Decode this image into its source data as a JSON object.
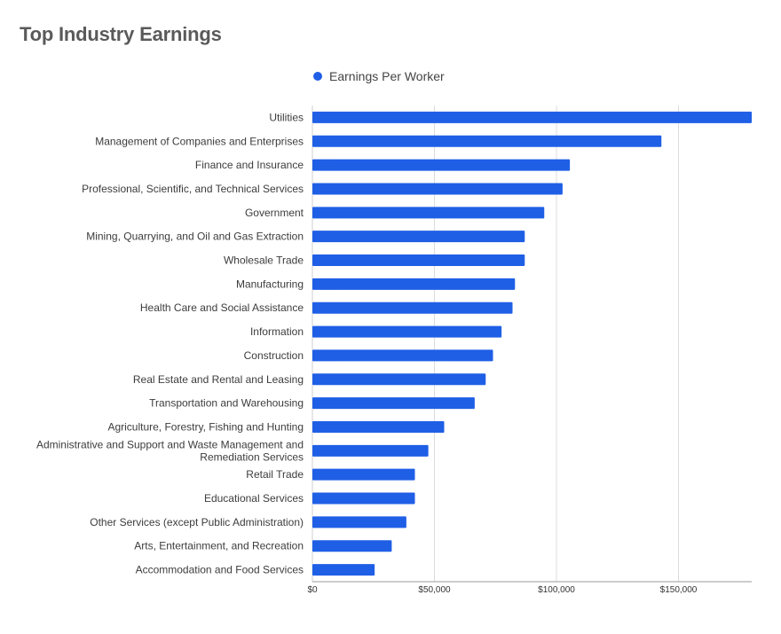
{
  "title": "Top Industry Earnings",
  "legend": {
    "label": "Earnings Per Worker",
    "color": "#1f5fe6"
  },
  "chart_data": {
    "type": "bar",
    "orientation": "horizontal",
    "title": "Top Industry Earnings",
    "xlabel": "",
    "ylabel": "",
    "xlim": [
      0,
      180000
    ],
    "grid": "vertical",
    "legend_position": "top",
    "ticks": [
      {
        "value": 0,
        "label": "$0"
      },
      {
        "value": 50000,
        "label": "$50,000"
      },
      {
        "value": 100000,
        "label": "$100,000"
      },
      {
        "value": 150000,
        "label": "$150,000"
      }
    ],
    "series": [
      {
        "name": "Earnings Per Worker",
        "color": "#1f5fe6",
        "categories": [
          [
            "Utilities"
          ],
          [
            "Management of Companies and Enterprises"
          ],
          [
            "Finance and Insurance"
          ],
          [
            "Professional, Scientific, and Technical Services"
          ],
          [
            "Government"
          ],
          [
            "Mining, Quarrying, and Oil and Gas Extraction"
          ],
          [
            "Wholesale Trade"
          ],
          [
            "Manufacturing"
          ],
          [
            "Health Care and Social Assistance"
          ],
          [
            "Information"
          ],
          [
            "Construction"
          ],
          [
            "Real Estate and Rental and Leasing"
          ],
          [
            "Transportation and Warehousing"
          ],
          [
            "Agriculture, Forestry, Fishing and Hunting"
          ],
          [
            "Administrative and Support and Waste Management and",
            "Remediation Services"
          ],
          [
            "Retail Trade"
          ],
          [
            "Educational Services"
          ],
          [
            "Other Services (except Public Administration)"
          ],
          [
            "Arts, Entertainment, and Recreation"
          ],
          [
            "Accommodation and Food Services"
          ]
        ],
        "values": [
          180000,
          143000,
          105500,
          102500,
          95000,
          87000,
          87000,
          83000,
          82000,
          77500,
          74000,
          71000,
          66500,
          54000,
          47500,
          42000,
          42000,
          38500,
          32500,
          25500
        ]
      }
    ]
  }
}
